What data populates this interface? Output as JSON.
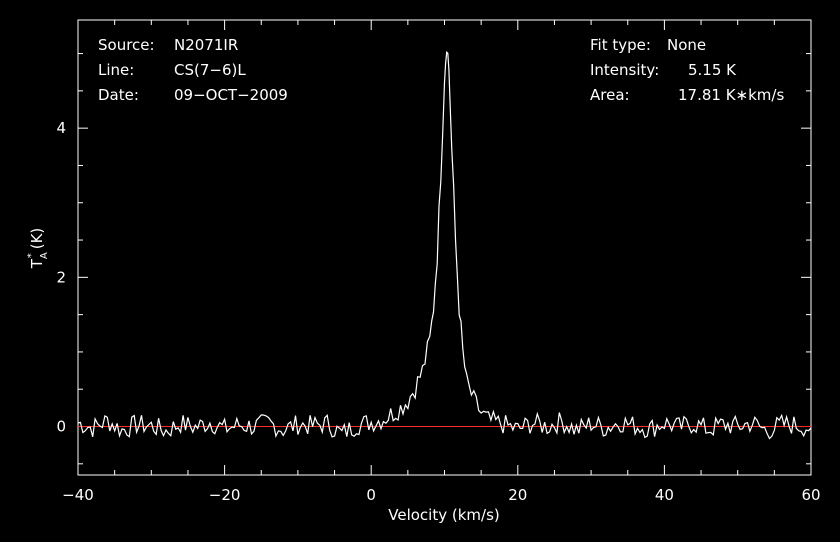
{
  "header": {
    "left": [
      {
        "label": "Source:",
        "value": "N2071IR"
      },
      {
        "label": "Line:",
        "value": "CS(7−6)L"
      },
      {
        "label": "Date:",
        "value": "09−OCT−2009"
      }
    ],
    "right": [
      {
        "label": "Fit type:",
        "value": "None"
      },
      {
        "label": "Intensity:",
        "value": "5.15 K"
      },
      {
        "label": "Area:",
        "value": "17.81 K∗km/s"
      }
    ]
  },
  "chart_data": {
    "type": "line",
    "xlabel": "Velocity (km/s)",
    "ylabel_main": "T",
    "ylabel_sub": "A",
    "ylabel_sup": "*",
    "ylabel_unit": "(K)",
    "xlim": [
      -40,
      60
    ],
    "ylim": [
      -0.65,
      5.45
    ],
    "x_ticks": [
      -40,
      -20,
      0,
      20,
      40,
      60
    ],
    "x_tick_labels": [
      "−40",
      "−20",
      "0",
      "20",
      "40",
      "60"
    ],
    "y_ticks": [
      0,
      2,
      4
    ],
    "y_tick_labels": [
      "0",
      "2",
      "4"
    ],
    "grid": false,
    "baseline": {
      "y": 0,
      "color": "#ff2a2a"
    },
    "series": [
      {
        "color": "#ffffff",
        "points": [
          [
            -40,
            0.05
          ],
          [
            -38,
            -0.02
          ],
          [
            -36,
            0.08
          ],
          [
            -34,
            -0.05
          ],
          [
            -32,
            0.03
          ],
          [
            -30,
            0.01
          ],
          [
            -28,
            -0.06
          ],
          [
            -26,
            0.04
          ],
          [
            -24,
            -0.01
          ],
          [
            -22,
            0.06
          ],
          [
            -20,
            -0.03
          ],
          [
            -18,
            0.02
          ],
          [
            -16,
            0.0
          ],
          [
            -14,
            0.05
          ],
          [
            -12,
            -0.04
          ],
          [
            -10,
            0.03
          ],
          [
            -8,
            0.01
          ],
          [
            -6,
            0.04
          ],
          [
            -4,
            -0.1
          ],
          [
            -2,
            0.02
          ],
          [
            0,
            0.06
          ],
          [
            1,
            0.08
          ],
          [
            2,
            0.12
          ],
          [
            3,
            0.18
          ],
          [
            4,
            0.25
          ],
          [
            5,
            0.35
          ],
          [
            6,
            0.52
          ],
          [
            7,
            0.75
          ],
          [
            8,
            1.15
          ],
          [
            8.5,
            1.6
          ],
          [
            9,
            2.3
          ],
          [
            9.5,
            3.4
          ],
          [
            10,
            4.7
          ],
          [
            10.3,
            5.15
          ],
          [
            10.6,
            4.8
          ],
          [
            11,
            3.7
          ],
          [
            11.5,
            2.5
          ],
          [
            12,
            1.6
          ],
          [
            12.5,
            1.0
          ],
          [
            13,
            0.6
          ],
          [
            14,
            0.35
          ],
          [
            15,
            0.18
          ],
          [
            16,
            0.08
          ],
          [
            18,
            0.03
          ],
          [
            20,
            -0.04
          ],
          [
            22,
            0.05
          ],
          [
            24,
            0.0
          ],
          [
            26,
            0.07
          ],
          [
            28,
            -0.05
          ],
          [
            30,
            0.04
          ],
          [
            32,
            -0.02
          ],
          [
            34,
            0.06
          ],
          [
            36,
            0.01
          ],
          [
            38,
            -0.03
          ],
          [
            40,
            0.05
          ],
          [
            42,
            -0.01
          ],
          [
            44,
            0.04
          ],
          [
            46,
            -0.04
          ],
          [
            48,
            0.03
          ],
          [
            50,
            0.0
          ],
          [
            52,
            0.05
          ],
          [
            54,
            -0.06
          ],
          [
            56,
            0.03
          ],
          [
            58,
            0.02
          ],
          [
            60,
            -0.02
          ]
        ]
      }
    ]
  }
}
